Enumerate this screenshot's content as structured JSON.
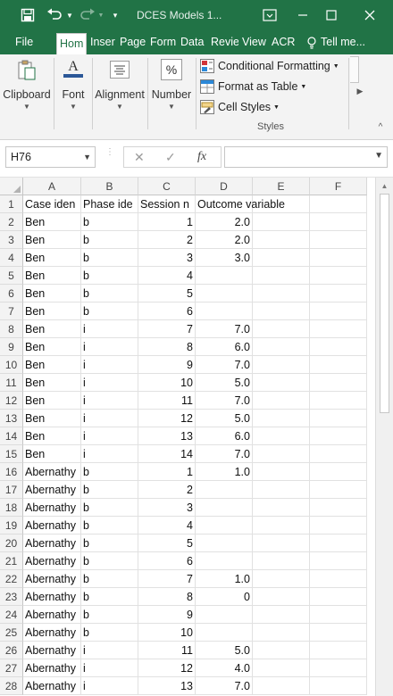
{
  "window": {
    "title": "DCES Models 1...",
    "icons": [
      "save-icon",
      "undo-icon",
      "redo-icon",
      "customize-qat-icon",
      "user-icon",
      "ribbon-display-icon",
      "minimize-icon",
      "maximize-icon",
      "close-icon"
    ]
  },
  "tabs": {
    "file": "File",
    "home": "Hom",
    "insert": "Inser",
    "page": "Page",
    "formulas": "Form",
    "data": "Data",
    "review": "Revie",
    "view": "View",
    "acrobat": "ACR",
    "tellme": "Tell me..."
  },
  "ribbon": {
    "clipboard": "Clipboard",
    "font": "Font",
    "alignment": "Alignment",
    "number": "Number",
    "conditional_formatting": "Conditional Formatting",
    "format_as_table": "Format as Table",
    "cell_styles": "Cell Styles",
    "styles_group": "Styles",
    "font_icon_letter": "A",
    "number_icon_symbol": "%"
  },
  "formula_bar": {
    "name_box": "H76",
    "formula": ""
  },
  "columns": [
    "A",
    "B",
    "C",
    "D",
    "E",
    "F"
  ],
  "rows": [
    {
      "n": "1",
      "a": "Case iden",
      "b": "Phase ide",
      "c": "Session n",
      "d": "Outcome variable",
      "e": ""
    },
    {
      "n": "2",
      "a": "Ben",
      "b": "b",
      "c": "1",
      "d": "2.0",
      "e": ""
    },
    {
      "n": "3",
      "a": "Ben",
      "b": "b",
      "c": "2",
      "d": "2.0",
      "e": ""
    },
    {
      "n": "4",
      "a": "Ben",
      "b": "b",
      "c": "3",
      "d": "3.0",
      "e": ""
    },
    {
      "n": "5",
      "a": "Ben",
      "b": "b",
      "c": "4",
      "d": "",
      "e": ""
    },
    {
      "n": "6",
      "a": "Ben",
      "b": "b",
      "c": "5",
      "d": "",
      "e": ""
    },
    {
      "n": "7",
      "a": "Ben",
      "b": "b",
      "c": "6",
      "d": "",
      "e": ""
    },
    {
      "n": "8",
      "a": "Ben",
      "b": "i",
      "c": "7",
      "d": "7.0",
      "e": ""
    },
    {
      "n": "9",
      "a": "Ben",
      "b": "i",
      "c": "8",
      "d": "6.0",
      "e": ""
    },
    {
      "n": "10",
      "a": "Ben",
      "b": "i",
      "c": "9",
      "d": "7.0",
      "e": ""
    },
    {
      "n": "11",
      "a": "Ben",
      "b": "i",
      "c": "10",
      "d": "5.0",
      "e": ""
    },
    {
      "n": "12",
      "a": "Ben",
      "b": "i",
      "c": "11",
      "d": "7.0",
      "e": ""
    },
    {
      "n": "13",
      "a": "Ben",
      "b": "i",
      "c": "12",
      "d": "5.0",
      "e": ""
    },
    {
      "n": "14",
      "a": "Ben",
      "b": "i",
      "c": "13",
      "d": "6.0",
      "e": ""
    },
    {
      "n": "15",
      "a": "Ben",
      "b": "i",
      "c": "14",
      "d": "7.0",
      "e": ""
    },
    {
      "n": "16",
      "a": "Abernathy",
      "b": "b",
      "c": "1",
      "d": "1.0",
      "e": ""
    },
    {
      "n": "17",
      "a": "Abernathy",
      "b": "b",
      "c": "2",
      "d": "",
      "e": ""
    },
    {
      "n": "18",
      "a": "Abernathy",
      "b": "b",
      "c": "3",
      "d": "",
      "e": ""
    },
    {
      "n": "19",
      "a": "Abernathy",
      "b": "b",
      "c": "4",
      "d": "",
      "e": ""
    },
    {
      "n": "20",
      "a": "Abernathy",
      "b": "b",
      "c": "5",
      "d": "",
      "e": ""
    },
    {
      "n": "21",
      "a": "Abernathy",
      "b": "b",
      "c": "6",
      "d": "",
      "e": ""
    },
    {
      "n": "22",
      "a": "Abernathy",
      "b": "b",
      "c": "7",
      "d": "1.0",
      "e": ""
    },
    {
      "n": "23",
      "a": "Abernathy",
      "b": "b",
      "c": "8",
      "d": "0",
      "e": ""
    },
    {
      "n": "24",
      "a": "Abernathy",
      "b": "b",
      "c": "9",
      "d": "",
      "e": ""
    },
    {
      "n": "25",
      "a": "Abernathy",
      "b": "b",
      "c": "10",
      "d": "",
      "e": ""
    },
    {
      "n": "26",
      "a": "Abernathy",
      "b": "i",
      "c": "11",
      "d": "5.0",
      "e": ""
    },
    {
      "n": "27",
      "a": "Abernathy",
      "b": "i",
      "c": "12",
      "d": "4.0",
      "e": ""
    },
    {
      "n": "28",
      "a": "Abernathy",
      "b": "i",
      "c": "13",
      "d": "7.0",
      "e": ""
    }
  ],
  "colors": {
    "excel_green": "#217346",
    "ribbon_bg": "#f3f3f3",
    "grid_line": "#e1e1e1"
  }
}
